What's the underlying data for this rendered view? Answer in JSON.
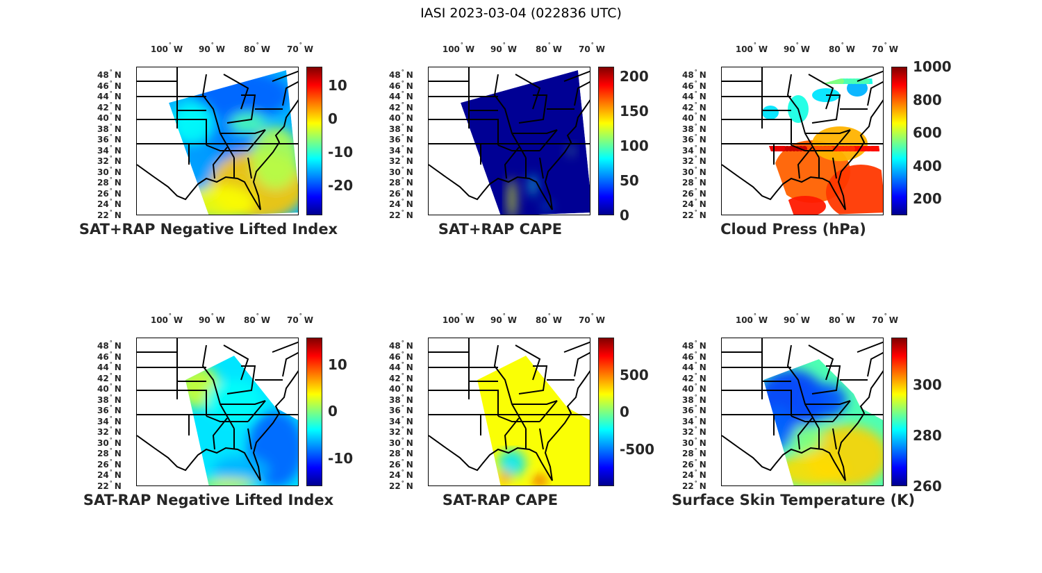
{
  "figure_title": "IASI 2023-03-04 (022836 UTC)",
  "lon_labels": [
    "100",
    "90",
    "80",
    "70"
  ],
  "lon_suffix": "W",
  "lat_labels": [
    "48",
    "46",
    "44",
    "42",
    "40",
    "38",
    "36",
    "34",
    "32",
    "30",
    "28",
    "26",
    "24",
    "22"
  ],
  "lat_suffix": "N",
  "degree_symbol": "°",
  "colormap": "jet",
  "panels": [
    {
      "title": "SAT+RAP Negative Lifted Index",
      "clim": [
        -29,
        15.6
      ],
      "ticks": [
        "10",
        "0",
        "-10",
        "-20"
      ],
      "tick_values": [
        10,
        0,
        -10,
        -20
      ],
      "style": "li"
    },
    {
      "title": "SAT+RAP CAPE",
      "clim": [
        0,
        214
      ],
      "ticks": [
        "200",
        "150",
        "100",
        "50",
        "0"
      ],
      "tick_values": [
        200,
        150,
        100,
        50,
        0
      ],
      "style": "cape"
    },
    {
      "title": "Cloud Press (hPa)",
      "clim": [
        100,
        1000
      ],
      "ticks": [
        "1000",
        "800",
        "600",
        "400",
        "200"
      ],
      "tick_values": [
        1000,
        800,
        600,
        400,
        200
      ],
      "style": "cloud"
    },
    {
      "title": "SAT-RAP Negative Lifted Index",
      "clim": [
        -16,
        15.8
      ],
      "ticks": [
        "10",
        "0",
        "-10"
      ],
      "tick_values": [
        10,
        0,
        -10
      ],
      "style": "dli"
    },
    {
      "title": "SAT-RAP CAPE",
      "clim": [
        -1000,
        1000
      ],
      "ticks": [
        "500",
        "0",
        "-500"
      ],
      "tick_values": [
        500,
        0,
        -500
      ],
      "style": "dcape"
    },
    {
      "title": "Surface Skin Temperature (K)",
      "clim": [
        260,
        318.6
      ],
      "ticks": [
        "300",
        "280",
        "260"
      ],
      "tick_values": [
        300,
        280,
        260
      ],
      "style": "skin"
    }
  ]
}
